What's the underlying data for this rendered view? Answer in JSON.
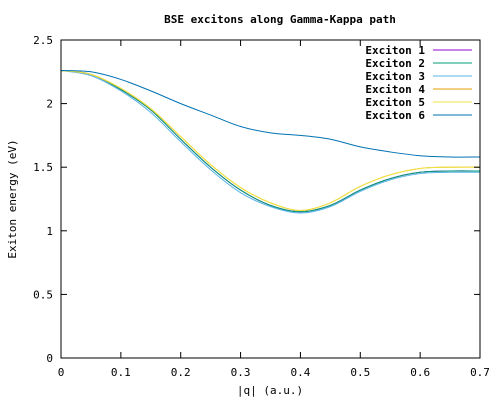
{
  "chart_data": {
    "type": "line",
    "title": "BSE excitons along Gamma-Kappa path",
    "xlabel": "|q| (a.u.)",
    "ylabel": "Exiton energy (eV)",
    "xlim": [
      0,
      0.7
    ],
    "ylim": [
      0,
      2.5
    ],
    "xticks": [
      0,
      0.1,
      0.2,
      0.3,
      0.4,
      0.5,
      0.6,
      0.7
    ],
    "yticks": [
      0,
      0.5,
      1,
      1.5,
      2,
      2.5
    ],
    "xtick_labels": [
      "0",
      "0.1",
      "0.2",
      "0.3",
      "0.4",
      "0.5",
      "0.6",
      "0.7"
    ],
    "ytick_labels": [
      "0",
      "0.5",
      "1",
      "1.5",
      "2",
      "2.5"
    ],
    "grid": false,
    "legend_position": "top-right",
    "x": [
      0,
      0.05,
      0.1,
      0.15,
      0.2,
      0.25,
      0.3,
      0.35,
      0.4,
      0.45,
      0.5,
      0.55,
      0.6,
      0.65,
      0.7
    ],
    "series": [
      {
        "name": "Exciton 1",
        "color": "#9400d3",
        "values": [
          2.26,
          2.23,
          2.11,
          1.95,
          1.72,
          1.5,
          1.32,
          1.2,
          1.15,
          1.2,
          1.32,
          1.41,
          1.46,
          1.47,
          1.47
        ]
      },
      {
        "name": "Exciton 2",
        "color": "#009e73",
        "values": [
          2.26,
          2.23,
          2.11,
          1.95,
          1.72,
          1.5,
          1.32,
          1.2,
          1.15,
          1.2,
          1.32,
          1.41,
          1.46,
          1.47,
          1.47
        ]
      },
      {
        "name": "Exciton 3",
        "color": "#56b4e9",
        "values": [
          2.26,
          2.22,
          2.1,
          1.93,
          1.7,
          1.48,
          1.3,
          1.19,
          1.14,
          1.19,
          1.31,
          1.4,
          1.45,
          1.46,
          1.46
        ]
      },
      {
        "name": "Exciton 4",
        "color": "#e69f00",
        "values": [
          2.26,
          2.23,
          2.12,
          1.96,
          1.74,
          1.52,
          1.34,
          1.22,
          1.16,
          1.22,
          1.35,
          1.44,
          1.49,
          1.5,
          1.5
        ]
      },
      {
        "name": "Exciton 5",
        "color": "#f0e442",
        "values": [
          2.26,
          2.23,
          2.12,
          1.96,
          1.74,
          1.52,
          1.34,
          1.22,
          1.16,
          1.22,
          1.35,
          1.44,
          1.49,
          1.5,
          1.5
        ]
      },
      {
        "name": "Exciton 6",
        "color": "#0072b2",
        "values": [
          2.26,
          2.25,
          2.19,
          2.1,
          2.0,
          1.91,
          1.82,
          1.77,
          1.75,
          1.72,
          1.66,
          1.62,
          1.59,
          1.58,
          1.58
        ]
      }
    ]
  }
}
